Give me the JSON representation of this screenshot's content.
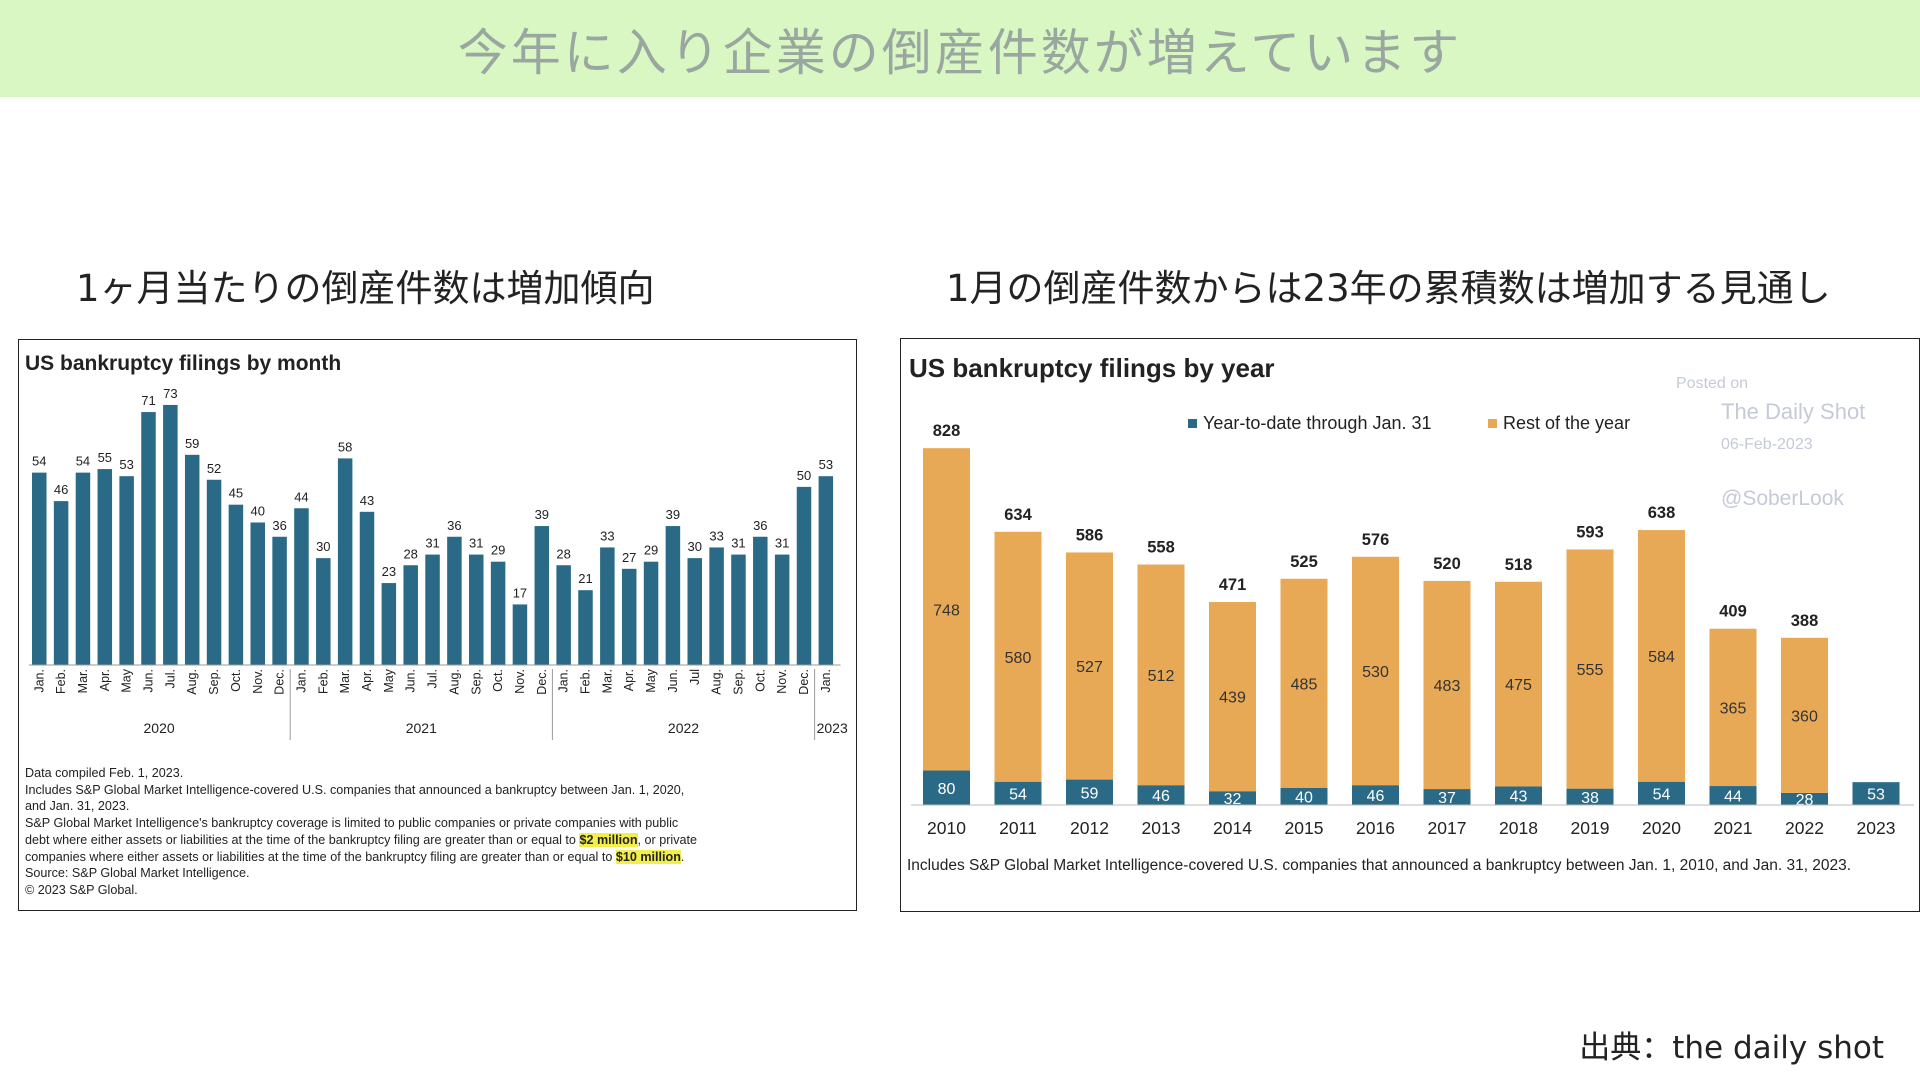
{
  "page_title": "今年に入り企業の倒産件数が増えています",
  "left_subtitle": "1ヶ月当たりの倒産件数は増加傾向",
  "right_subtitle": "1月の倒産件数からは23年の累積数は増加する見通し",
  "source_text": "出典：the daily shot",
  "colors": {
    "banner": "#d9f7c2",
    "bar_blue": "#2a6a86",
    "bar_orange": "#e7a955"
  },
  "chart_data": [
    {
      "type": "bar",
      "title": "US bankruptcy filings by month",
      "categories": [
        "Jan.",
        "Feb.",
        "Mar.",
        "Apr.",
        "May",
        "Jun.",
        "Jul.",
        "Aug.",
        "Sep.",
        "Oct.",
        "Nov.",
        "Dec.",
        "Jan.",
        "Feb.",
        "Mar.",
        "Apr.",
        "May",
        "Jun.",
        "Jul.",
        "Aug.",
        "Sep.",
        "Oct.",
        "Nov.",
        "Dec.",
        "Jan.",
        "Feb.",
        "Mar.",
        "Apr.",
        "May",
        "Jun.",
        "Jul",
        "Aug.",
        "Sep.",
        "Oct.",
        "Nov.",
        "Dec.",
        "Jan."
      ],
      "values": [
        54,
        46,
        54,
        55,
        53,
        71,
        73,
        59,
        52,
        45,
        40,
        36,
        44,
        30,
        58,
        43,
        23,
        28,
        31,
        36,
        31,
        29,
        17,
        39,
        28,
        21,
        33,
        27,
        29,
        39,
        30,
        33,
        31,
        36,
        31,
        50,
        53
      ],
      "groups": [
        {
          "label": "2020",
          "count": 12
        },
        {
          "label": "2021",
          "count": 12
        },
        {
          "label": "2022",
          "count": 12
        },
        {
          "label": "2023",
          "count": 1
        }
      ],
      "ylim": [
        0,
        80
      ],
      "notes": [
        "Data compiled Feb. 1, 2023.",
        "Includes S&P Global Market Intelligence-covered U.S. companies that announced a bankruptcy between Jan. 1, 2020,",
        "and Jan. 31, 2023.",
        "S&P Global Market Intelligence's bankruptcy coverage is limited to public companies or private companies with public",
        "debt where either assets or liabilities at the time of the bankruptcy filing are greater than or equal to",
        "$2 million",
        ", or private",
        "companies where either assets or liabilities at the time of the bankruptcy filing are greater than or equal to",
        "$10 million",
        ".",
        "Source: S&P Global Market Intelligence.",
        "© 2023 S&P Global."
      ]
    },
    {
      "type": "bar",
      "stacked": true,
      "title": "US bankruptcy filings by year",
      "categories": [
        "2010",
        "2011",
        "2012",
        "2013",
        "2014",
        "2015",
        "2016",
        "2017",
        "2018",
        "2019",
        "2020",
        "2021",
        "2022",
        "2023"
      ],
      "series": [
        {
          "name": "Year-to-date through Jan. 31",
          "values": [
            80,
            54,
            59,
            46,
            32,
            40,
            46,
            37,
            43,
            38,
            54,
            44,
            28,
            53
          ]
        },
        {
          "name": "Rest of the year",
          "values": [
            748,
            580,
            527,
            512,
            439,
            485,
            530,
            483,
            475,
            555,
            584,
            365,
            360,
            0
          ]
        }
      ],
      "totals": [
        828,
        634,
        586,
        558,
        471,
        525,
        576,
        520,
        518,
        593,
        638,
        409,
        388,
        null
      ],
      "ylim": [
        0,
        840
      ],
      "footnote": "Includes S&P Global Market Intelligence-covered U.S. companies that announced a bankruptcy between Jan. 1, 2010, and Jan. 31, 2023.",
      "watermark": {
        "posted_on": "Posted on",
        "site": "The Daily Shot",
        "date": "06-Feb-2023",
        "handle": "@SoberLook"
      }
    }
  ]
}
